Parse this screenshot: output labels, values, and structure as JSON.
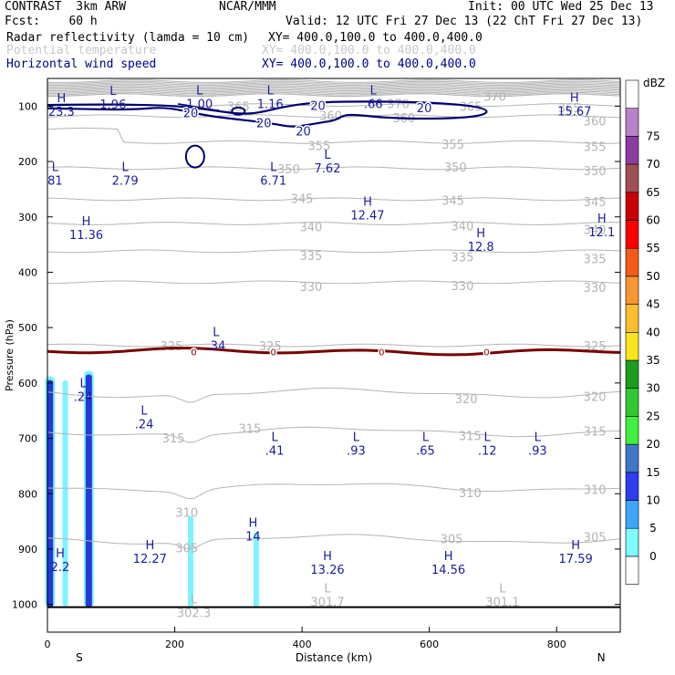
{
  "header": {
    "model": "CONTRAST  3km ARW",
    "center": "NCAR/MMM",
    "init": "Init: 00 UTC Wed 25 Dec 13",
    "fcst": "Fcst:    60 h",
    "valid": "Valid: 12 UTC Fri 27 Dec 13 (22 ChT Fri 27 Dec 13)",
    "field1": {
      "name": "Radar reflectivity (lamda = 10 cm)",
      "xy": "XY= 400.0,100.0 to 400.0,400.0"
    },
    "field2": {
      "name": "Potential temperature",
      "xy": "XY= 400.0,100.0 to 400.0,400.0"
    },
    "field3": {
      "name": "Horizontal wind speed",
      "xy": "XY= 400.0,100.0 to 400.0,400.0"
    }
  },
  "colors": {
    "theta": "#b4b4b4",
    "wind": "#00006e",
    "freezing": "#780000",
    "hl_label": "#1c1c9c",
    "refl_light": "#7cf4ff",
    "refl_dark": "#2838d8",
    "theta_label": "#b4b4b4"
  },
  "chart_data": {
    "type": "contour",
    "xlabel": "Distance (km)",
    "ylabel": "Pressure (hPa)",
    "xlim": [
      0,
      900
    ],
    "ylim": [
      1050,
      50
    ],
    "xticks": [
      0,
      200,
      400,
      600,
      800
    ],
    "yticks": [
      100,
      200,
      300,
      400,
      500,
      600,
      700,
      800,
      900,
      1000
    ],
    "x_end_labels": {
      "left": "S",
      "right": "N"
    },
    "theta_contours": [
      {
        "value": 370,
        "p": 80,
        "shape": "flat"
      },
      {
        "value": 365,
        "p": 98,
        "shape": "flat"
      },
      {
        "value": 360,
        "p": 118,
        "shape": "flat"
      },
      {
        "value": 355,
        "p": 165,
        "shape": "step"
      },
      {
        "value": 350,
        "p": 212,
        "shape": "flat"
      },
      {
        "value": 345,
        "p": 268,
        "shape": "flat"
      },
      {
        "value": 340,
        "p": 312,
        "shape": "flat"
      },
      {
        "value": 335,
        "p": 362,
        "shape": "flat"
      },
      {
        "value": 330,
        "p": 418,
        "shape": "flat"
      },
      {
        "value": 325,
        "p": 532,
        "shape": "flat"
      },
      {
        "value": 320,
        "p": 618,
        "shape": "dip"
      },
      {
        "value": 315,
        "p": 688,
        "shape": "dip"
      },
      {
        "value": 310,
        "p": 788,
        "shape": "dip"
      },
      {
        "value": 305,
        "p": 882,
        "shape": "dip"
      }
    ],
    "theta_labels": [
      {
        "text": "370",
        "x": 703,
        "p": 82
      },
      {
        "text": "370",
        "x": 551,
        "p": 95
      },
      {
        "text": "365",
        "x": 300,
        "p": 100
      },
      {
        "text": "365",
        "x": 665,
        "p": 100
      },
      {
        "text": "365",
        "x": 820,
        "p": 103
      },
      {
        "text": "360",
        "x": 445,
        "p": 117
      },
      {
        "text": "360",
        "x": 560,
        "p": 121
      },
      {
        "text": "360",
        "x": 860,
        "p": 127
      },
      {
        "text": "355",
        "x": 427,
        "p": 171
      },
      {
        "text": "355",
        "x": 637,
        "p": 169
      },
      {
        "text": "355",
        "x": 860,
        "p": 173
      },
      {
        "text": "350",
        "x": 379,
        "p": 213
      },
      {
        "text": "350",
        "x": 641,
        "p": 210
      },
      {
        "text": "350",
        "x": 860,
        "p": 216
      },
      {
        "text": "345",
        "x": 400,
        "p": 267
      },
      {
        "text": "345",
        "x": 637,
        "p": 270
      },
      {
        "text": "345",
        "x": 860,
        "p": 272
      },
      {
        "text": "340",
        "x": 414,
        "p": 318
      },
      {
        "text": "340",
        "x": 652,
        "p": 316
      },
      {
        "text": "340",
        "x": 860,
        "p": 323
      },
      {
        "text": "335",
        "x": 414,
        "p": 370
      },
      {
        "text": "335",
        "x": 652,
        "p": 372
      },
      {
        "text": "335",
        "x": 860,
        "p": 375
      },
      {
        "text": "330",
        "x": 414,
        "p": 426
      },
      {
        "text": "330",
        "x": 652,
        "p": 424
      },
      {
        "text": "330",
        "x": 860,
        "p": 427
      },
      {
        "text": "325",
        "x": 195,
        "p": 533
      },
      {
        "text": "325",
        "x": 350,
        "p": 533
      },
      {
        "text": "325",
        "x": 860,
        "p": 533
      },
      {
        "text": "320",
        "x": 658,
        "p": 628
      },
      {
        "text": "320",
        "x": 860,
        "p": 624
      },
      {
        "text": "315",
        "x": 198,
        "p": 699
      },
      {
        "text": "315",
        "x": 318,
        "p": 682
      },
      {
        "text": "315",
        "x": 664,
        "p": 695
      },
      {
        "text": "315",
        "x": 860,
        "p": 687
      },
      {
        "text": "310",
        "x": 219,
        "p": 833
      },
      {
        "text": "310",
        "x": 664,
        "p": 798
      },
      {
        "text": "310",
        "x": 860,
        "p": 792
      },
      {
        "text": "305",
        "x": 219,
        "p": 898
      },
      {
        "text": "305",
        "x": 635,
        "p": 881
      },
      {
        "text": "305",
        "x": 860,
        "p": 878
      }
    ],
    "theta_extrema": [
      {
        "type": "L",
        "value": "302.3",
        "x": 230,
        "p": 1005
      },
      {
        "type": "L",
        "value": "301.7",
        "x": 440,
        "p": 985
      },
      {
        "type": "L",
        "value": "301.1",
        "x": 715,
        "p": 985
      }
    ],
    "wind_extrema": [
      {
        "type": "H",
        "value": "23.3",
        "x": 22,
        "p": 98
      },
      {
        "type": "L",
        "value": "1.96",
        "x": 103,
        "p": 85
      },
      {
        "type": "L",
        "value": "1.00",
        "x": 239,
        "p": 84
      },
      {
        "type": "L",
        "value": "1.16",
        "x": 350,
        "p": 84
      },
      {
        "type": "L",
        "value": ".66",
        "x": 512,
        "p": 84
      },
      {
        "type": "H",
        "value": "15.67",
        "x": 828,
        "p": 97
      },
      {
        "type": "L",
        "value": "2.79",
        "x": 122,
        "p": 222
      },
      {
        "type": "L",
        "value": "6.71",
        "x": 355,
        "p": 222
      },
      {
        "type": "L",
        "value": "7.62",
        "x": 440,
        "p": 200
      },
      {
        "type": "L",
        "value": "81",
        "x": 12,
        "p": 222
      },
      {
        "type": "H",
        "value": "11.36",
        "x": 61,
        "p": 320
      },
      {
        "type": "H",
        "value": "12.47",
        "x": 503,
        "p": 285
      },
      {
        "type": "H",
        "value": "12.8",
        "x": 681,
        "p": 342
      },
      {
        "type": "H",
        "value": "12.1",
        "x": 871,
        "p": 315
      },
      {
        "type": "L",
        "value": ".34",
        "x": 265,
        "p": 520
      },
      {
        "type": "L",
        "value": ".24",
        "x": 56,
        "p": 613
      },
      {
        "type": "L",
        "value": ".24",
        "x": 152,
        "p": 662
      },
      {
        "type": "L",
        "value": ".41",
        "x": 357,
        "p": 710
      },
      {
        "type": "L",
        "value": ".93",
        "x": 485,
        "p": 710
      },
      {
        "type": "L",
        "value": ".65",
        "x": 594,
        "p": 710
      },
      {
        "type": "L",
        "value": ".12",
        "x": 691,
        "p": 710
      },
      {
        "type": "L",
        "value": ".93",
        "x": 770,
        "p": 710
      },
      {
        "type": "H",
        "value": "2.2",
        "x": 20,
        "p": 920
      },
      {
        "type": "H",
        "value": "12.27",
        "x": 161,
        "p": 905
      },
      {
        "type": "H",
        "value": "14",
        "x": 323,
        "p": 865
      },
      {
        "type": "H",
        "value": "13.26",
        "x": 440,
        "p": 925
      },
      {
        "type": "H",
        "value": "14.56",
        "x": 630,
        "p": 925
      },
      {
        "type": "H",
        "value": "17.59",
        "x": 830,
        "p": 905
      }
    ],
    "wind_contour_value": "20",
    "wind_contour_labels": [
      {
        "text": "20",
        "x": 225,
        "p": 112
      },
      {
        "text": "20",
        "x": 425,
        "p": 99
      },
      {
        "text": "20",
        "x": 592,
        "p": 103
      },
      {
        "text": "20",
        "x": 340,
        "p": 130
      },
      {
        "text": "20",
        "x": 402,
        "p": 145
      }
    ],
    "freezing_level": {
      "p": 543,
      "value_label": "0",
      "label_x": [
        230,
        355,
        525,
        690
      ]
    },
    "reflectivity_columns": [
      {
        "x": 4,
        "p_top": 588,
        "p_bottom": 1005,
        "dbz": 20
      },
      {
        "x": 28,
        "p_top": 595,
        "p_bottom": 1003,
        "dbz": 10
      },
      {
        "x": 65,
        "p_top": 578,
        "p_bottom": 1005,
        "dbz": 20
      },
      {
        "x": 225,
        "p_top": 840,
        "p_bottom": 1005,
        "dbz": 10
      },
      {
        "x": 328,
        "p_top": 870,
        "p_bottom": 1005,
        "dbz": 10
      }
    ],
    "colorbar": {
      "unit": "dBZ",
      "levels": [
        0,
        5,
        10,
        15,
        20,
        25,
        30,
        35,
        40,
        45,
        50,
        55,
        60,
        65,
        70,
        75
      ],
      "colors": [
        "#ffffff",
        "#7ffcff",
        "#3ea5fa",
        "#2c3ef0",
        "#3f78c8",
        "#40f040",
        "#32c832",
        "#1e9c1e",
        "#fce41c",
        "#fbbd32",
        "#f89632",
        "#f45a19",
        "#fa0000",
        "#c80000",
        "#a05050",
        "#8c3ca0",
        "#b882c8",
        "#ffffff"
      ]
    }
  }
}
